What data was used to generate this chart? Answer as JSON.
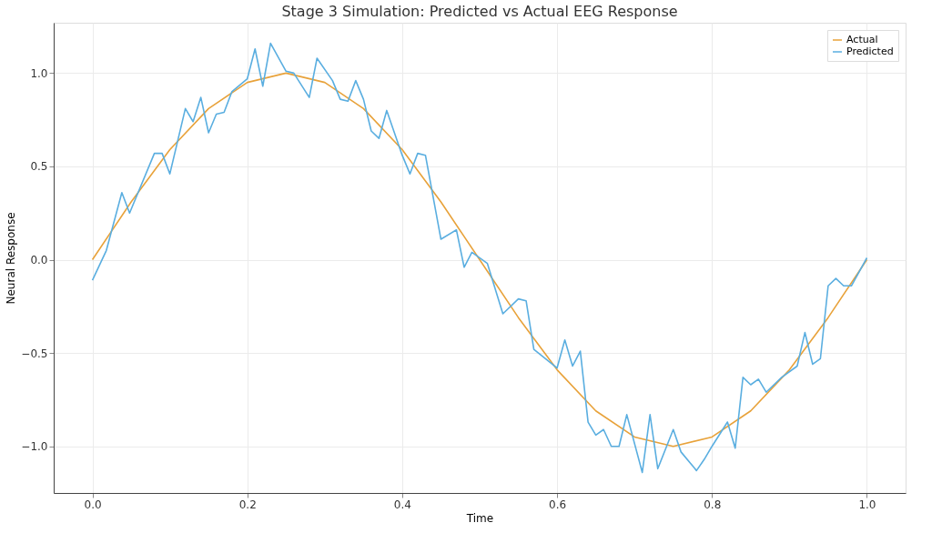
{
  "chart_data": {
    "type": "line",
    "title": "Stage 3 Simulation: Predicted vs Actual EEG Response",
    "xlabel": "Time",
    "ylabel": "Neural Response",
    "series": [
      {
        "name": "Actual",
        "color": "#e8a23a",
        "x": [
          0,
          0.05,
          0.1,
          0.15,
          0.2,
          0.25,
          0.3,
          0.35,
          0.4,
          0.45,
          0.5,
          0.55,
          0.6,
          0.65,
          0.7,
          0.75,
          0.8,
          0.85,
          0.9,
          0.95,
          1.0
        ],
        "values": [
          0,
          0.31,
          0.59,
          0.81,
          0.95,
          1.0,
          0.95,
          0.81,
          0.59,
          0.31,
          0,
          -0.31,
          -0.59,
          -0.81,
          -0.95,
          -1.0,
          -0.95,
          -0.81,
          -0.59,
          -0.31,
          0
        ]
      },
      {
        "name": "Predicted",
        "color": "#5aaee0",
        "x": [
          0,
          0.018,
          0.038,
          0.048,
          0.08,
          0.09,
          0.1,
          0.12,
          0.13,
          0.14,
          0.15,
          0.16,
          0.17,
          0.18,
          0.2,
          0.21,
          0.22,
          0.23,
          0.25,
          0.26,
          0.28,
          0.29,
          0.31,
          0.32,
          0.33,
          0.34,
          0.35,
          0.36,
          0.37,
          0.38,
          0.4,
          0.41,
          0.42,
          0.43,
          0.45,
          0.47,
          0.48,
          0.49,
          0.51,
          0.53,
          0.55,
          0.56,
          0.57,
          0.6,
          0.61,
          0.62,
          0.63,
          0.64,
          0.65,
          0.66,
          0.67,
          0.68,
          0.69,
          0.71,
          0.72,
          0.73,
          0.75,
          0.76,
          0.78,
          0.79,
          0.8,
          0.82,
          0.83,
          0.84,
          0.85,
          0.86,
          0.87,
          0.89,
          0.91,
          0.92,
          0.93,
          0.94,
          0.95,
          0.96,
          0.97,
          0.98,
          1.0
        ],
        "values": [
          -0.11,
          0.05,
          0.36,
          0.25,
          0.57,
          0.57,
          0.46,
          0.81,
          0.74,
          0.87,
          0.68,
          0.78,
          0.79,
          0.9,
          0.97,
          1.13,
          0.93,
          1.16,
          1.01,
          1.0,
          0.87,
          1.08,
          0.96,
          0.86,
          0.85,
          0.96,
          0.86,
          0.69,
          0.65,
          0.8,
          0.56,
          0.46,
          0.57,
          0.56,
          0.11,
          0.16,
          -0.04,
          0.04,
          -0.02,
          -0.29,
          -0.21,
          -0.22,
          -0.48,
          -0.58,
          -0.43,
          -0.57,
          -0.49,
          -0.87,
          -0.94,
          -0.91,
          -1.0,
          -1.0,
          -0.83,
          -1.14,
          -0.83,
          -1.12,
          -0.91,
          -1.03,
          -1.13,
          -1.07,
          -1.0,
          -0.87,
          -1.01,
          -0.63,
          -0.67,
          -0.64,
          -0.71,
          -0.63,
          -0.57,
          -0.39,
          -0.56,
          -0.53,
          -0.14,
          -0.1,
          -0.14,
          -0.14,
          0.01
        ]
      }
    ],
    "xlim": [
      -0.05,
      1.05
    ],
    "ylim": [
      -1.25,
      1.27
    ],
    "xticks": [
      {
        "value": 0,
        "label": "0.0"
      },
      {
        "value": 0.2,
        "label": "0.2"
      },
      {
        "value": 0.4,
        "label": "0.4"
      },
      {
        "value": 0.6,
        "label": "0.6"
      },
      {
        "value": 0.8,
        "label": "0.8"
      },
      {
        "value": 1.0,
        "label": "1.0"
      }
    ],
    "yticks": [
      {
        "value": -1.0,
        "label": "−1.0"
      },
      {
        "value": -0.5,
        "label": "−0.5"
      },
      {
        "value": 0,
        "label": "0.0"
      },
      {
        "value": 0.5,
        "label": "0.5"
      },
      {
        "value": 1.0,
        "label": "1.0"
      }
    ],
    "grid": true,
    "legend": "top right",
    "line_style": "solid",
    "marker": "none"
  }
}
